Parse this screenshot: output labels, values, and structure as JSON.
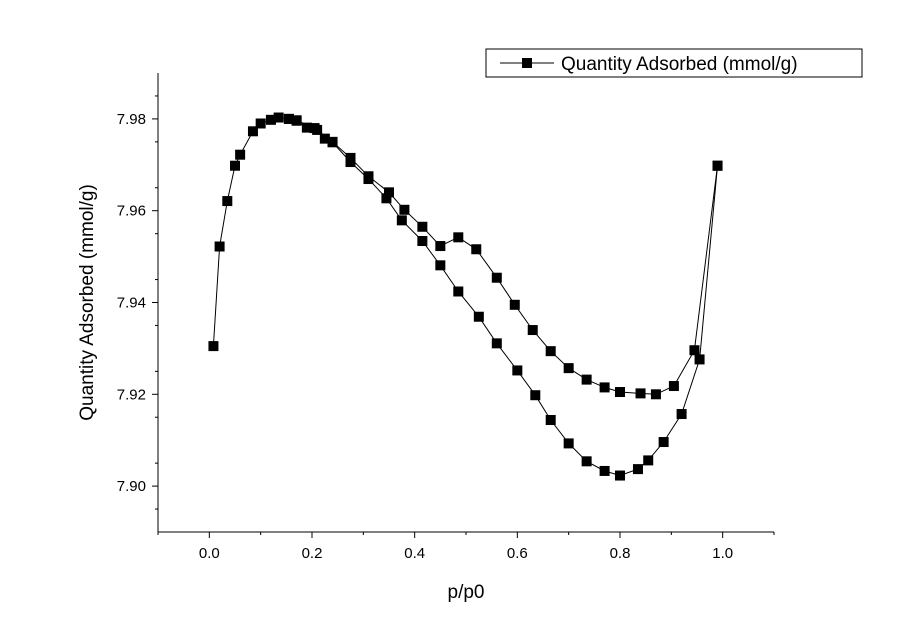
{
  "chart_data": {
    "type": "line",
    "title": "",
    "xlabel": "p/p0",
    "ylabel": "Quantity Adsorbed (mmol/g)",
    "xlim": [
      -0.1,
      1.1
    ],
    "ylim": [
      7.89,
      7.99
    ],
    "xticks": [
      "0.0",
      "0.2",
      "0.4",
      "0.6",
      "0.8",
      "1.0"
    ],
    "yticks": [
      "7.90",
      "7.92",
      "7.94",
      "7.96",
      "7.98"
    ],
    "grid": false,
    "legend_position": "top-right",
    "color": "#000000",
    "marker": "square",
    "series": [
      {
        "name": "Quantity Adsorbed (mmol/g)",
        "x": [
          0.008,
          0.02,
          0.035,
          0.05,
          0.06,
          0.085,
          0.1,
          0.12,
          0.135,
          0.155,
          0.17,
          0.19,
          0.21,
          0.225,
          0.24,
          0.275,
          0.31,
          0.345,
          0.375,
          0.415,
          0.45,
          0.485,
          0.525,
          0.56,
          0.6,
          0.635,
          0.665,
          0.7,
          0.735,
          0.77,
          0.8,
          0.835,
          0.855,
          0.885,
          0.92,
          0.955,
          0.99
        ],
        "y": [
          7.9305,
          7.9522,
          7.9621,
          7.9698,
          7.9722,
          7.9773,
          7.979,
          7.9798,
          7.9803,
          7.98,
          7.9796,
          7.9781,
          7.9776,
          7.9757,
          7.9749,
          7.9706,
          7.9669,
          7.9627,
          7.9579,
          7.9534,
          7.9481,
          7.9424,
          7.9369,
          7.9311,
          7.9252,
          7.9198,
          7.9144,
          7.9093,
          7.9054,
          7.9033,
          7.9023,
          7.9037,
          7.9056,
          7.9096,
          7.9157,
          7.9276,
          7.9698
        ]
      },
      {
        "name": "",
        "x": [
          0.99,
          0.945,
          0.905,
          0.87,
          0.84,
          0.8,
          0.77,
          0.735,
          0.7,
          0.665,
          0.63,
          0.595,
          0.56,
          0.52,
          0.485,
          0.45,
          0.415,
          0.38,
          0.35,
          0.31,
          0.275,
          0.24,
          0.205,
          0.17,
          0.155
        ],
        "y": [
          7.9698,
          7.9296,
          7.9218,
          7.92,
          7.9202,
          7.9205,
          7.9215,
          7.9232,
          7.9257,
          7.9294,
          7.934,
          7.9395,
          7.9454,
          7.9516,
          7.9542,
          7.9523,
          7.9565,
          7.9602,
          7.964,
          7.9675,
          7.9715,
          7.975,
          7.978,
          7.9797,
          7.98
        ]
      }
    ]
  }
}
